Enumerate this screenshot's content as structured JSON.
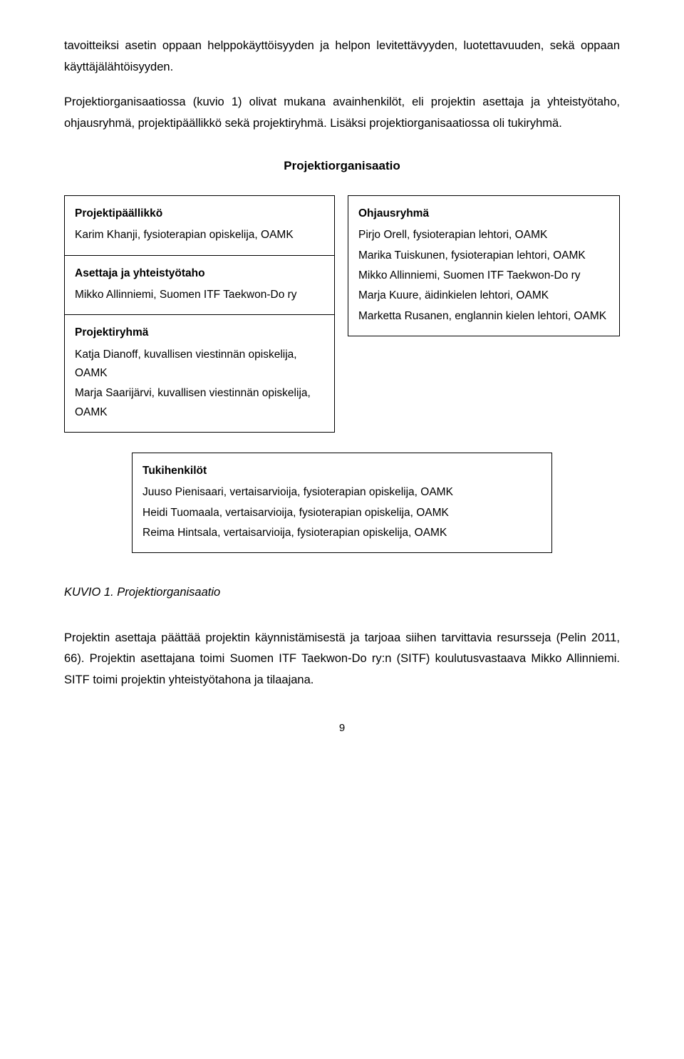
{
  "intro_para1": "tavoitteiksi asetin oppaan helppokäyttöisyyden ja helpon levitettävyyden, luotettavuuden, sekä oppaan käyttäjälähtöisyyden.",
  "intro_para2": "Projektiorganisaatiossa (kuvio 1) olivat mukana avainhenkilöt, eli projektin asettaja ja yhteistyötaho, ohjausryhmä, projektipäällikkö sekä projektiryhmä. Lisäksi projektiorganisaatiossa oli tukiryhmä.",
  "diagram_title": "Projektiorganisaatio",
  "left_boxes": [
    {
      "title": "Projektipäällikkö",
      "lines": [
        "Karim Khanji, fysioterapian opiskelija, OAMK"
      ]
    },
    {
      "title": "Asettaja ja yhteistyötaho",
      "lines": [
        "Mikko Allinniemi, Suomen ITF Taekwon-Do ry"
      ]
    },
    {
      "title": "Projektiryhmä",
      "lines": [
        "Katja Dianoff, kuvallisen viestinnän opiskelija, OAMK",
        "Marja Saarijärvi, kuvallisen viestinnän opiskelija, OAMK"
      ]
    }
  ],
  "right_box": {
    "title": "Ohjausryhmä",
    "lines": [
      "Pirjo Orell, fysioterapian lehtori, OAMK",
      "Marika Tuiskunen, fysioterapian lehtori, OAMK",
      "Mikko Allinniemi, Suomen ITF Taekwon-Do ry",
      "Marja Kuure, äidinkielen lehtori, OAMK",
      "Marketta Rusanen, englannin kielen lehtori, OAMK"
    ]
  },
  "bottom_box": {
    "title": "Tukihenkilöt",
    "lines": [
      "Juuso Pienisaari, vertaisarvioija, fysioterapian opiskelija, OAMK",
      "Heidi Tuomaala, vertaisarvioija, fysioterapian opiskelija, OAMK",
      "Reima Hintsala, vertaisarvioija, fysioterapian opiskelija, OAMK"
    ]
  },
  "caption": "KUVIO 1. Projektiorganisaatio",
  "closing_para": "Projektin asettaja päättää projektin käynnistämisestä ja tarjoaa siihen tarvittavia resursseja (Pelin 2011, 66). Projektin asettajana toimi Suomen ITF Taekwon-Do ry:n (SITF) koulutusvastaava Mikko Allinniemi. SITF toimi projektin yhteistyötahona ja tilaajana.",
  "page_number": "9"
}
